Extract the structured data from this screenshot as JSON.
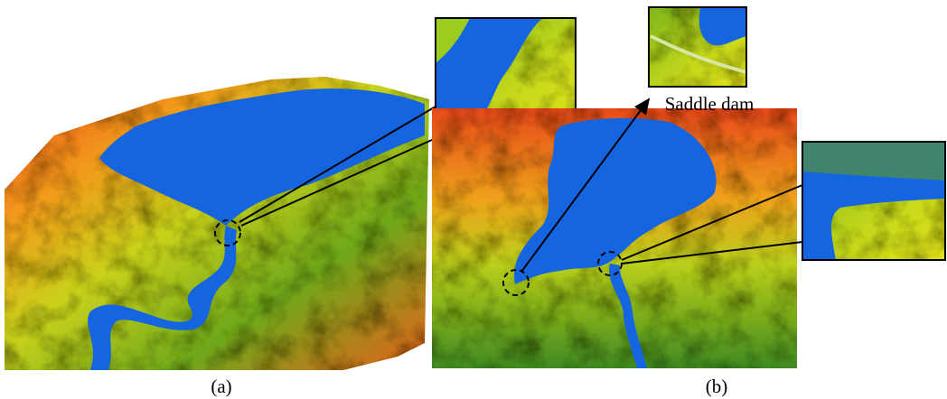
{
  "panels": [
    {
      "label": "(a)"
    },
    {
      "label": "(b)",
      "annotation": "Saddle dam"
    }
  ]
}
